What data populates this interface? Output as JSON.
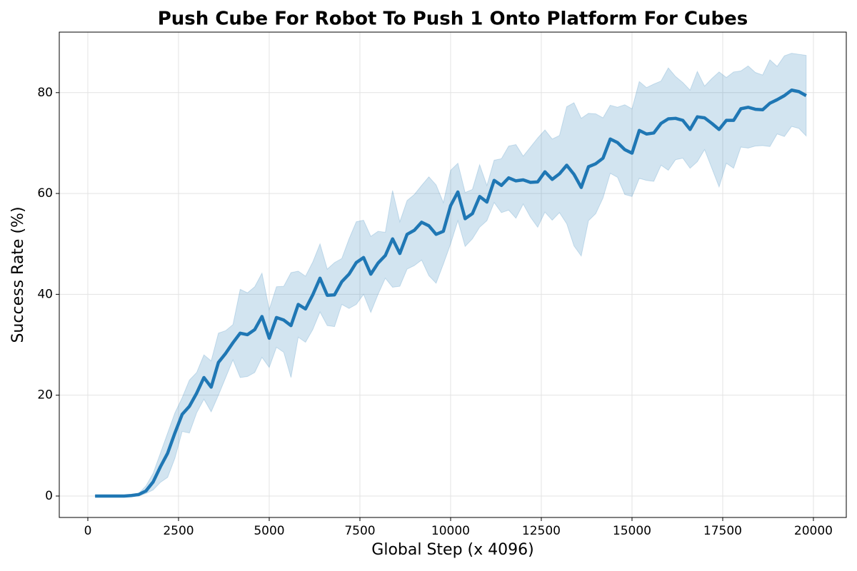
{
  "chart_data": {
    "type": "line",
    "title": "Push Cube For Robot To Push 1 Onto Platform For Cubes",
    "xlabel": "Global Step (x 4096)",
    "ylabel": "Success Rate (%)",
    "color": "#1f77b4",
    "band_color": "#1f77b4",
    "grid": true,
    "xlim": [
      -787,
      20906
    ],
    "ylim": [
      -4.25,
      92
    ],
    "xticks": [
      0,
      2500,
      5000,
      7500,
      10000,
      12500,
      15000,
      17500,
      20000
    ],
    "yticks": [
      0,
      20,
      40,
      60,
      80
    ],
    "x": [
      200,
      400,
      600,
      800,
      1000,
      1200,
      1400,
      1600,
      1800,
      2000,
      2200,
      2400,
      2600,
      2800,
      3000,
      3200,
      3400,
      3600,
      3800,
      4000,
      4200,
      4400,
      4600,
      4800,
      5000,
      5200,
      5400,
      5600,
      5800,
      6000,
      6200,
      6400,
      6600,
      6800,
      7000,
      7200,
      7400,
      7600,
      7800,
      8000,
      8200,
      8400,
      8600,
      8800,
      9000,
      9200,
      9400,
      9600,
      9800,
      10000,
      10200,
      10400,
      10600,
      10800,
      11000,
      11200,
      11400,
      11600,
      11800,
      12000,
      12200,
      12400,
      12600,
      12800,
      13000,
      13200,
      13400,
      13600,
      13800,
      14000,
      14200,
      14400,
      14600,
      14800,
      15000,
      15200,
      15400,
      15600,
      15800,
      16000,
      16200,
      16400,
      16600,
      16800,
      17000,
      17200,
      17400,
      17600,
      17800,
      18000,
      18200,
      18400,
      18600,
      18800,
      19000,
      19200,
      19400,
      19600,
      19800
    ],
    "values": [
      0,
      0,
      0,
      0,
      0,
      0.1,
      0.3,
      1,
      2.8,
      5.8,
      8.5,
      12.5,
      16.2,
      17.8,
      20.4,
      23.5,
      21.6,
      26.5,
      28.3,
      30.4,
      32.3,
      32,
      33,
      35.6,
      31.3,
      35.4,
      34.9,
      33.8,
      38,
      37.1,
      39.9,
      43.2,
      39.8,
      39.9,
      42.5,
      44,
      46.3,
      47.3,
      44,
      46.2,
      47.7,
      51,
      48.1,
      51.9,
      52.7,
      54.3,
      53.6,
      51.9,
      52.5,
      57.6,
      60.3,
      55,
      56,
      59.4,
      58.3,
      62.6,
      61.6,
      63.1,
      62.5,
      62.7,
      62.2,
      62.3,
      64.3,
      62.8,
      63.9,
      65.6,
      63.8,
      61.2,
      65.3,
      65.9,
      67,
      70.8,
      70.1,
      68.7,
      68,
      72.5,
      71.8,
      72,
      73.9,
      74.8,
      74.9,
      74.5,
      72.7,
      75.2,
      75,
      73.9,
      72.7,
      74.5,
      74.5,
      76.8,
      77.1,
      76.7,
      76.6,
      77.9,
      78.6,
      79.4,
      80.5,
      80.2,
      79.4
    ],
    "lower": [
      0,
      0,
      0,
      0,
      0,
      0,
      0,
      0.5,
      1.2,
      2.7,
      3.7,
      7.5,
      12.8,
      12.5,
      16.5,
      19.2,
      16.7,
      20,
      23.5,
      27,
      23.5,
      23.7,
      24.5,
      27.5,
      25.5,
      29.5,
      28.5,
      23.5,
      31.5,
      30.5,
      33,
      36.5,
      33.8,
      33.6,
      38,
      37.2,
      38,
      40,
      36.4,
      40,
      43.2,
      41.4,
      41.6,
      45,
      45.7,
      46.8,
      43.7,
      42.2,
      46,
      50,
      54.6,
      49.5,
      51,
      53.3,
      54.6,
      58.2,
      56.2,
      56.7,
      55.1,
      57.9,
      55.3,
      53.3,
      56.3,
      54.7,
      56.2,
      54,
      49.6,
      47.6,
      54.6,
      56,
      59.1,
      64,
      63.2,
      59.8,
      59.4,
      63,
      62.6,
      62.4,
      65.6,
      64.6,
      66.7,
      67,
      65,
      66.3,
      68.7,
      65,
      61.3,
      66,
      65,
      69.2,
      69,
      69.4,
      69.5,
      69.3,
      71.8,
      71.3,
      73.3,
      72.9,
      71.4
    ],
    "upper": [
      0.1,
      0.1,
      0.1,
      0.1,
      0.1,
      0.2,
      0.5,
      2,
      4.5,
      8.5,
      12.5,
      16.5,
      19.5,
      23,
      24.5,
      28,
      26.8,
      32.3,
      32.8,
      34,
      41,
      40.3,
      41.5,
      44.2,
      37,
      41.5,
      41.6,
      44.3,
      44.6,
      43.6,
      46.4,
      50,
      45,
      46.3,
      47.1,
      51,
      54.4,
      54.7,
      51.5,
      52.5,
      52.3,
      60.6,
      54.4,
      58.6,
      59.8,
      61.6,
      63.3,
      61.7,
      58.2,
      64.6,
      66,
      60.2,
      60.8,
      65.7,
      61.6,
      66.6,
      66.9,
      69.4,
      69.7,
      67.4,
      69.2,
      71,
      72.6,
      70.8,
      71.5,
      77.2,
      78,
      74.9,
      75.9,
      75.8,
      75,
      77.5,
      77.1,
      77.6,
      76.8,
      82.2,
      81,
      81.7,
      82.3,
      84.9,
      83.2,
      82,
      80.5,
      84.2,
      81.3,
      82.8,
      84.1,
      83,
      84.1,
      84.3,
      85.3,
      84,
      83.5,
      86.5,
      85.2,
      87.3,
      87.8,
      87.6,
      87.4
    ]
  }
}
